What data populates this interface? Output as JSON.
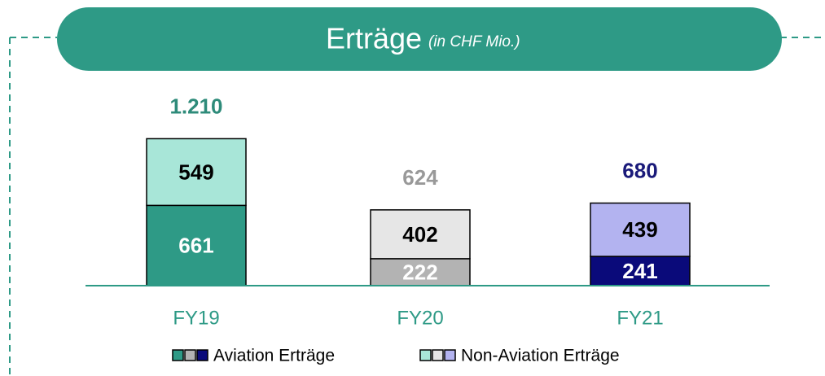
{
  "chart_data": {
    "type": "stacked-bar",
    "title": "Erträge",
    "subtitle": "(in CHF Mio.)",
    "categories": [
      "FY19",
      "FY20",
      "FY21"
    ],
    "series": [
      {
        "name": "Aviation Erträge",
        "colors": [
          "#2e9a86",
          "#b3b3b3",
          "#0a0a7a"
        ],
        "label_color": "#ffffff",
        "values": [
          661,
          222,
          241
        ]
      },
      {
        "name": "Non-Aviation Erträge",
        "colors": [
          "#a8e6d8",
          "#e6e6e6",
          "#b3b3f0"
        ],
        "label_color": "#000000",
        "values": [
          549,
          402,
          439
        ]
      }
    ],
    "totals": {
      "values": [
        1210,
        624,
        680
      ],
      "value_labels": [
        "1.210",
        "624",
        "680"
      ],
      "colors": [
        "#2e8b7a",
        "#999999",
        "#1a1a7a"
      ]
    },
    "ylim": [
      0,
      1300
    ],
    "accent_color": "#2e9a86"
  }
}
